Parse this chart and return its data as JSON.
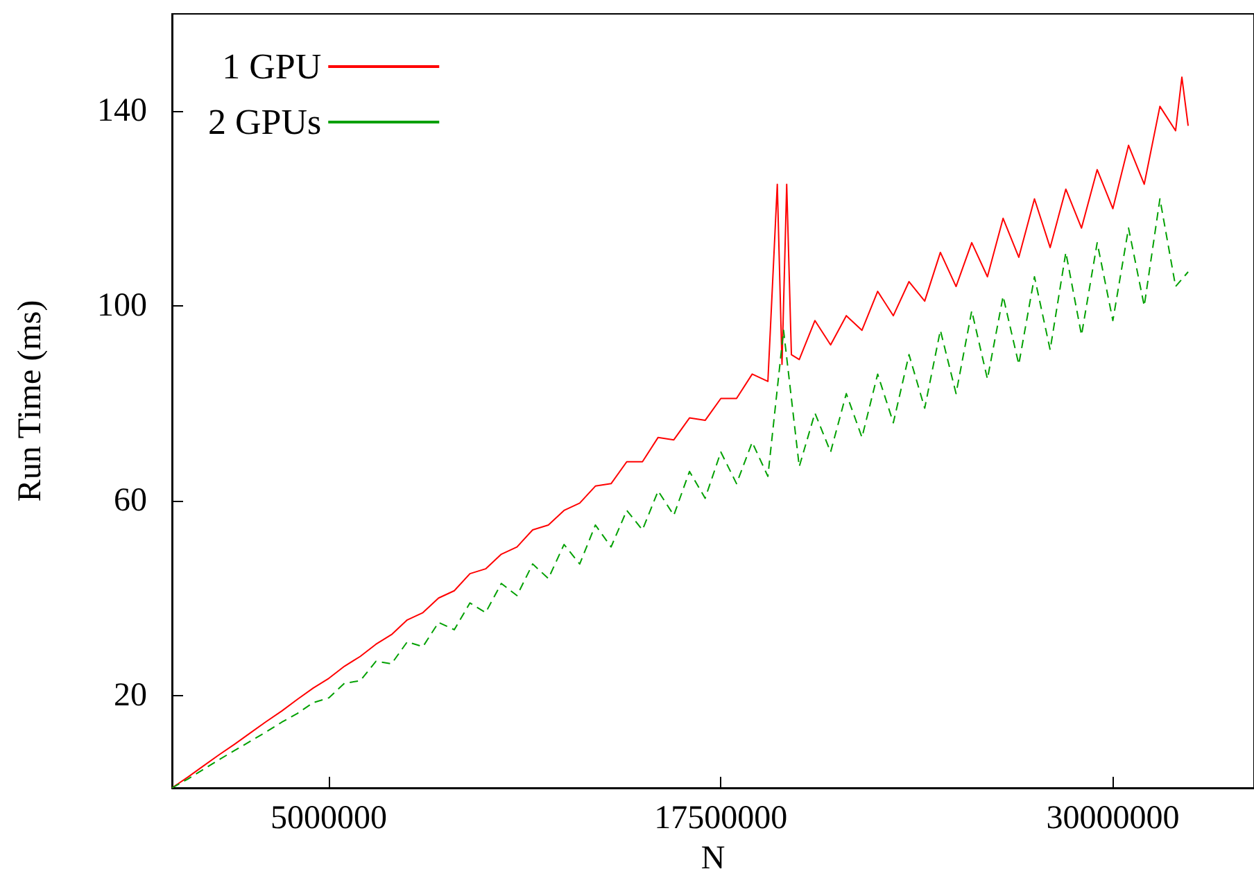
{
  "chart_data": {
    "type": "line",
    "xlabel": "N",
    "ylabel": "Run Time (ms)",
    "xlim": [
      0,
      34500000
    ],
    "xticks": [
      5000000,
      17500000,
      30000000
    ],
    "ylim": [
      1,
      160
    ],
    "yticks": [
      20,
      60,
      100,
      140
    ],
    "grid": false,
    "legend": "top left",
    "marker": "none",
    "series": [
      {
        "name": "1 GPU",
        "color": "#ff0000",
        "line_style": "solid",
        "x": [
          0,
          500000,
          1000000,
          1500000,
          2000000,
          2500000,
          3000000,
          3500000,
          4000000,
          4500000,
          5000000,
          5500000,
          6000000,
          6500000,
          7000000,
          7500000,
          8000000,
          8500000,
          9000000,
          9500000,
          10000000,
          10500000,
          11000000,
          11500000,
          12000000,
          12500000,
          13000000,
          13500000,
          14000000,
          14500000,
          15000000,
          15500000,
          16000000,
          16500000,
          17000000,
          17500000,
          18000000,
          18500000,
          19000000,
          19300000,
          19450000,
          19600000,
          19750000,
          20000000,
          20500000,
          21000000,
          21500000,
          22000000,
          22500000,
          23000000,
          23500000,
          24000000,
          24500000,
          25000000,
          25500000,
          26000000,
          26500000,
          27000000,
          27500000,
          28000000,
          28500000,
          29000000,
          29500000,
          30000000,
          30500000,
          31000000,
          31500000,
          32000000,
          32200000,
          32400000
        ],
        "values": [
          1,
          3.2,
          5.5,
          7.8,
          10,
          12.3,
          14.6,
          16.8,
          19.2,
          21.5,
          23.5,
          26,
          28,
          30.5,
          32.5,
          35.5,
          37,
          40,
          41.5,
          45,
          46,
          49,
          50.5,
          54,
          55,
          58,
          59.5,
          63,
          63.5,
          68,
          68,
          73,
          72.5,
          77,
          76.5,
          81,
          81,
          86,
          84.5,
          125,
          88,
          125,
          90,
          89,
          97,
          92,
          98,
          95,
          103,
          98,
          105,
          101,
          111,
          104,
          113,
          106,
          118,
          110,
          122,
          112,
          124,
          116,
          128,
          120,
          133,
          125,
          141,
          136,
          147,
          137
        ]
      },
      {
        "name": "2 GPUs",
        "color": "#00a000",
        "line_style": "dashed",
        "x": [
          0,
          500000,
          1000000,
          1500000,
          2000000,
          2500000,
          3000000,
          3500000,
          4000000,
          4500000,
          5000000,
          5500000,
          6000000,
          6500000,
          7000000,
          7500000,
          8000000,
          8500000,
          9000000,
          9500000,
          10000000,
          10500000,
          11000000,
          11500000,
          12000000,
          12500000,
          13000000,
          13500000,
          14000000,
          14500000,
          15000000,
          15500000,
          16000000,
          16500000,
          17000000,
          17500000,
          18000000,
          18500000,
          19000000,
          19500000,
          20000000,
          20500000,
          21000000,
          21500000,
          22000000,
          22500000,
          23000000,
          23500000,
          24000000,
          24500000,
          25000000,
          25500000,
          26000000,
          26500000,
          27000000,
          27500000,
          28000000,
          28500000,
          29000000,
          29500000,
          30000000,
          30500000,
          31000000,
          31500000,
          32000000,
          32400000
        ],
        "values": [
          1,
          2.8,
          4.8,
          6.8,
          8.7,
          10.6,
          12.5,
          14.5,
          16.3,
          18.5,
          19.5,
          22.5,
          23,
          27,
          26.5,
          31,
          30,
          35,
          33.5,
          39,
          37,
          43,
          40.5,
          47,
          44,
          51,
          47,
          55,
          50.5,
          58,
          54,
          62,
          57,
          66,
          60.5,
          70,
          63.5,
          72,
          65,
          95,
          67,
          78,
          70,
          82,
          73,
          86,
          76,
          90,
          79,
          95,
          82,
          99,
          85,
          102,
          88,
          106,
          91,
          111,
          94,
          113,
          97,
          116,
          100,
          122,
          104,
          107
        ]
      }
    ]
  }
}
